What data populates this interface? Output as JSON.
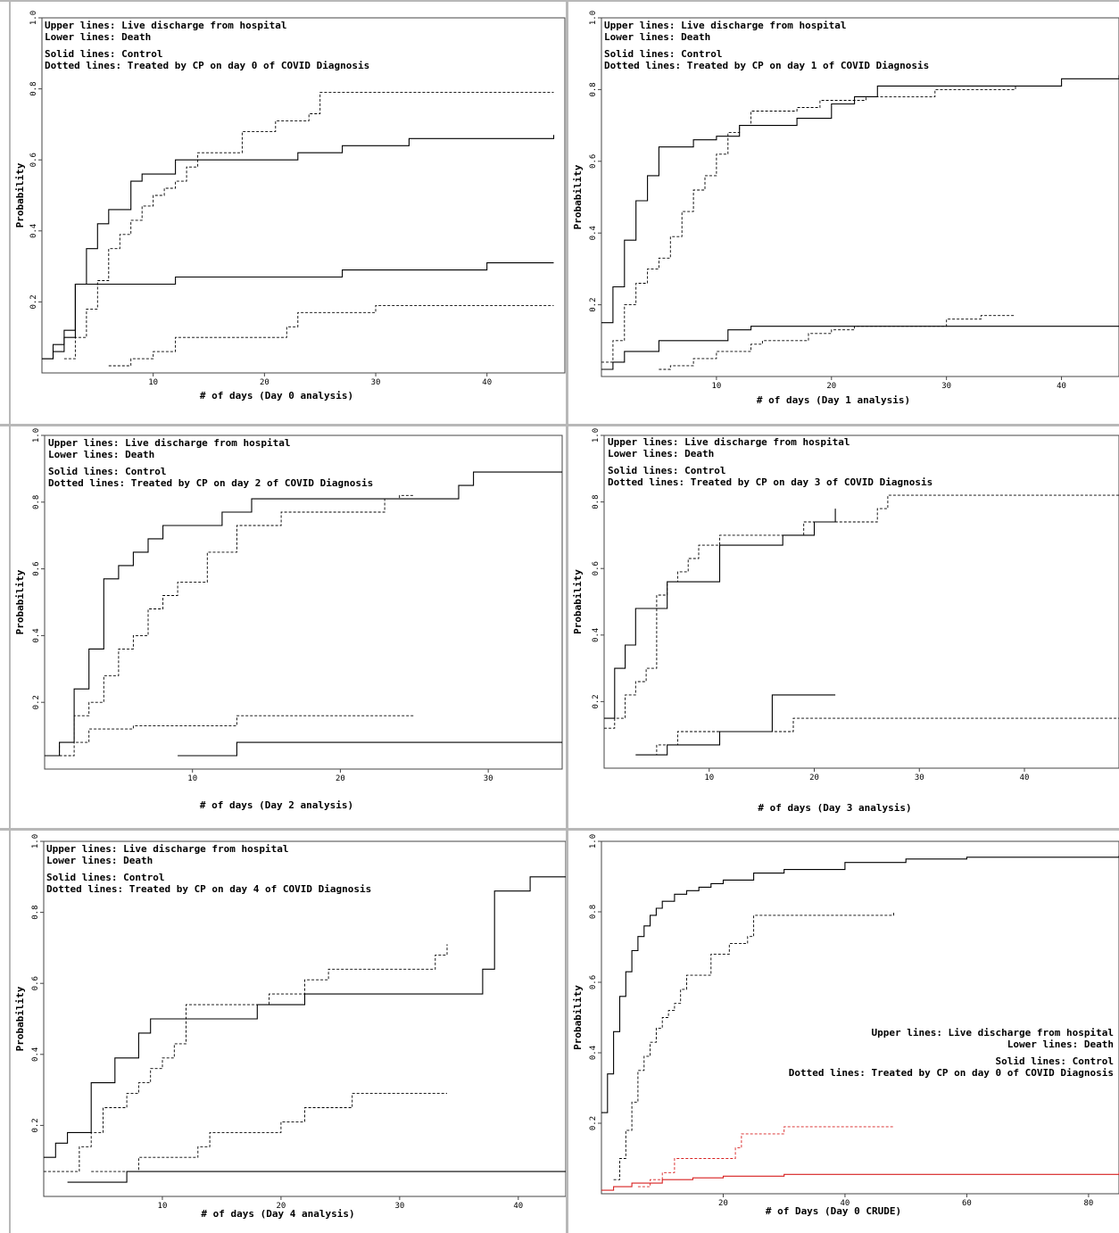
{
  "colors": {
    "line": "#000000",
    "frame": "#444444",
    "divider": "#b8b8b8",
    "red": "#d82020"
  },
  "chart_data": [
    {
      "type": "line",
      "xlabel": "# of days (Day 0 analysis)",
      "ylabel": "Probability",
      "xlim": [
        0,
        47
      ],
      "ylim": [
        0,
        1.0
      ],
      "xticks": [
        10,
        20,
        30,
        40
      ],
      "yticks": [
        0.2,
        0.4,
        0.6,
        0.8,
        1.0
      ],
      "legend_lines": [
        "Upper lines: Live discharge from hospital",
        "Lower lines: Death",
        "Solid lines: Control",
        "Dotted lines: Treated by CP on day 0 of COVID Diagnosis"
      ],
      "series": [
        {
          "style": "solid",
          "x": [
            0,
            1,
            2,
            3,
            4,
            5,
            6,
            8,
            9,
            12,
            23,
            27,
            33,
            46
          ],
          "y": [
            0.04,
            0.08,
            0.12,
            0.25,
            0.35,
            0.42,
            0.46,
            0.54,
            0.56,
            0.6,
            0.62,
            0.64,
            0.66,
            0.67
          ]
        },
        {
          "style": "dotted",
          "x": [
            2,
            3,
            4,
            5,
            6,
            7,
            8,
            9,
            10,
            11,
            12,
            13,
            14,
            18,
            21,
            24,
            25,
            26,
            46
          ],
          "y": [
            0.04,
            0.1,
            0.18,
            0.26,
            0.35,
            0.39,
            0.43,
            0.47,
            0.5,
            0.52,
            0.54,
            0.58,
            0.62,
            0.68,
            0.71,
            0.73,
            0.79,
            0.79,
            0.79
          ]
        },
        {
          "style": "solid",
          "x": [
            0,
            1,
            2,
            3,
            12,
            27,
            40,
            46
          ],
          "y": [
            0.04,
            0.06,
            0.1,
            0.25,
            0.27,
            0.29,
            0.31,
            0.31
          ]
        },
        {
          "style": "dotted",
          "x": [
            6,
            8,
            10,
            12,
            18,
            22,
            23,
            30,
            46
          ],
          "y": [
            0.02,
            0.04,
            0.06,
            0.1,
            0.1,
            0.13,
            0.17,
            0.19,
            0.19
          ]
        }
      ]
    },
    {
      "type": "line",
      "xlabel": "# of days (Day 1 analysis)",
      "ylabel": "Probability",
      "xlim": [
        0,
        45
      ],
      "ylim": [
        0,
        1.0
      ],
      "xticks": [
        10,
        20,
        30,
        40
      ],
      "yticks": [
        0.2,
        0.4,
        0.6,
        0.8,
        1.0
      ],
      "legend_lines": [
        "Upper lines: Live discharge from hospital",
        "Lower lines: Death",
        "Solid lines: Control",
        "Dotted lines: Treated by CP on day 1 of COVID Diagnosis"
      ],
      "series": [
        {
          "style": "solid",
          "x": [
            0,
            1,
            2,
            3,
            4,
            5,
            8,
            10,
            11,
            12,
            17,
            20,
            22,
            24,
            34,
            40,
            45
          ],
          "y": [
            0.15,
            0.25,
            0.38,
            0.49,
            0.56,
            0.64,
            0.66,
            0.67,
            0.67,
            0.7,
            0.72,
            0.76,
            0.78,
            0.81,
            0.81,
            0.83,
            0.84
          ]
        },
        {
          "style": "dotted",
          "x": [
            0,
            1,
            2,
            3,
            4,
            5,
            6,
            7,
            8,
            9,
            10,
            11,
            12,
            13,
            17,
            19,
            23,
            29,
            36
          ],
          "y": [
            0.04,
            0.1,
            0.2,
            0.26,
            0.3,
            0.33,
            0.39,
            0.46,
            0.52,
            0.56,
            0.62,
            0.68,
            0.7,
            0.74,
            0.75,
            0.77,
            0.78,
            0.8,
            0.81
          ]
        },
        {
          "style": "solid",
          "x": [
            0,
            1,
            2,
            5,
            11,
            13,
            45
          ],
          "y": [
            0.02,
            0.04,
            0.07,
            0.1,
            0.13,
            0.14,
            0.14
          ]
        },
        {
          "style": "dotted",
          "x": [
            5,
            6,
            8,
            10,
            13,
            14,
            18,
            20,
            22,
            30,
            33,
            36
          ],
          "y": [
            0.02,
            0.03,
            0.05,
            0.07,
            0.09,
            0.1,
            0.12,
            0.13,
            0.14,
            0.16,
            0.17,
            0.17
          ]
        }
      ]
    },
    {
      "type": "line",
      "xlabel": "# of days (Day 2 analysis)",
      "ylabel": "Probability",
      "xlim": [
        0,
        35
      ],
      "ylim": [
        0,
        1.0
      ],
      "xticks": [
        10,
        20,
        30
      ],
      "yticks": [
        0.2,
        0.4,
        0.6,
        0.8,
        1.0
      ],
      "legend_lines": [
        "Upper lines: Live discharge from hospital",
        "Lower lines: Death",
        "Solid lines: Control",
        "Dotted lines: Treated by CP on day 2 of COVID Diagnosis"
      ],
      "series": [
        {
          "style": "solid",
          "x": [
            0,
            1,
            2,
            3,
            4,
            5,
            6,
            7,
            8,
            12,
            14,
            28,
            29,
            35
          ],
          "y": [
            0.04,
            0.08,
            0.24,
            0.36,
            0.57,
            0.61,
            0.65,
            0.69,
            0.73,
            0.77,
            0.81,
            0.85,
            0.89,
            0.89
          ]
        },
        {
          "style": "dotted",
          "x": [
            1,
            2,
            3,
            4,
            5,
            6,
            7,
            8,
            9,
            11,
            13,
            16,
            23,
            24,
            25
          ],
          "y": [
            0.04,
            0.16,
            0.2,
            0.28,
            0.36,
            0.4,
            0.48,
            0.52,
            0.56,
            0.65,
            0.73,
            0.77,
            0.81,
            0.82,
            0.82
          ]
        },
        {
          "style": "solid",
          "x": [
            9,
            13,
            35
          ],
          "y": [
            0.04,
            0.08,
            0.08
          ]
        },
        {
          "style": "dotted",
          "x": [
            0,
            1,
            3,
            6,
            13,
            25
          ],
          "y": [
            0.04,
            0.08,
            0.12,
            0.13,
            0.16,
            0.16
          ]
        }
      ]
    },
    {
      "type": "line",
      "xlabel": "# of days (Day 3 analysis)",
      "ylabel": "Probability",
      "xlim": [
        0,
        49
      ],
      "ylim": [
        0,
        1.0
      ],
      "xticks": [
        10,
        20,
        30,
        40
      ],
      "yticks": [
        0.2,
        0.4,
        0.6,
        0.8,
        1.0
      ],
      "legend_lines": [
        "Upper lines: Live discharge from hospital",
        "Lower lines: Death",
        "Solid lines: Control",
        "Dotted lines: Treated by CP on day 3 of COVID Diagnosis"
      ],
      "series": [
        {
          "style": "solid",
          "x": [
            0,
            1,
            2,
            3,
            6,
            11,
            17,
            20,
            22
          ],
          "y": [
            0.15,
            0.3,
            0.37,
            0.48,
            0.56,
            0.67,
            0.7,
            0.74,
            0.78
          ]
        },
        {
          "style": "dotted",
          "x": [
            0,
            1,
            2,
            3,
            4,
            5,
            6,
            7,
            8,
            9,
            11,
            16,
            19,
            22,
            26,
            27,
            49
          ],
          "y": [
            0.12,
            0.15,
            0.22,
            0.26,
            0.3,
            0.52,
            0.56,
            0.59,
            0.63,
            0.67,
            0.7,
            0.7,
            0.74,
            0.74,
            0.78,
            0.82,
            0.82
          ]
        },
        {
          "style": "solid",
          "x": [
            3,
            6,
            11,
            16,
            22
          ],
          "y": [
            0.04,
            0.07,
            0.11,
            0.22,
            0.22
          ]
        },
        {
          "style": "dotted",
          "x": [
            4,
            5,
            7,
            18,
            49
          ],
          "y": [
            0.04,
            0.07,
            0.11,
            0.15,
            0.15
          ]
        }
      ]
    },
    {
      "type": "line",
      "xlabel": "# of days (Day 4 analysis)",
      "ylabel": "Probability",
      "xlim": [
        0,
        44
      ],
      "ylim": [
        0,
        1.0
      ],
      "xticks": [
        10,
        20,
        30,
        40
      ],
      "yticks": [
        0.2,
        0.4,
        0.6,
        0.8,
        1.0
      ],
      "legend_lines": [
        "Upper lines: Live discharge from hospital",
        "Lower lines: Death",
        "Solid lines: Control",
        "Dotted lines: Treated by CP on day 4 of COVID Diagnosis"
      ],
      "series": [
        {
          "style": "solid",
          "x": [
            0,
            1,
            2,
            4,
            6,
            8,
            9,
            18,
            22,
            37,
            38,
            41,
            44
          ],
          "y": [
            0.11,
            0.15,
            0.18,
            0.32,
            0.39,
            0.46,
            0.5,
            0.54,
            0.57,
            0.64,
            0.86,
            0.9,
            0.9
          ]
        },
        {
          "style": "dotted",
          "x": [
            0,
            3,
            4,
            5,
            7,
            8,
            9,
            10,
            11,
            12,
            19,
            22,
            24,
            33,
            34
          ],
          "y": [
            0.07,
            0.14,
            0.18,
            0.25,
            0.29,
            0.32,
            0.36,
            0.39,
            0.43,
            0.54,
            0.57,
            0.61,
            0.64,
            0.68,
            0.71
          ]
        },
        {
          "style": "solid",
          "x": [
            2,
            7,
            44
          ],
          "y": [
            0.04,
            0.07,
            0.07
          ]
        },
        {
          "style": "dotted",
          "x": [
            4,
            8,
            13,
            14,
            20,
            22,
            26,
            34
          ],
          "y": [
            0.07,
            0.11,
            0.14,
            0.18,
            0.21,
            0.25,
            0.29,
            0.29
          ]
        }
      ]
    },
    {
      "type": "line",
      "xlabel": "# of Days (Day 0 CRUDE)",
      "ylabel": "Probability",
      "xlim": [
        0,
        85
      ],
      "ylim": [
        0,
        1.0
      ],
      "xticks": [
        20,
        40,
        60,
        80
      ],
      "yticks": [
        0.2,
        0.4,
        0.6,
        0.8,
        1.0
      ],
      "legend_position": "middle-right",
      "legend_lines": [
        "Upper lines: Live discharge from hospital",
        "Lower lines: Death",
        "Solid lines: Control",
        "Dotted lines: Treated by CP on day 0 of COVID Diagnosis"
      ],
      "series": [
        {
          "style": "solid",
          "color": "#000000",
          "x": [
            0,
            1,
            2,
            3,
            4,
            5,
            6,
            7,
            8,
            9,
            10,
            12,
            14,
            16,
            18,
            20,
            25,
            30,
            40,
            50,
            60,
            85
          ],
          "y": [
            0.23,
            0.34,
            0.46,
            0.56,
            0.63,
            0.69,
            0.73,
            0.76,
            0.79,
            0.81,
            0.83,
            0.85,
            0.86,
            0.87,
            0.88,
            0.89,
            0.91,
            0.92,
            0.94,
            0.95,
            0.955,
            0.96
          ]
        },
        {
          "style": "dotted",
          "color": "#000000",
          "x": [
            2,
            3,
            4,
            5,
            6,
            7,
            8,
            9,
            10,
            11,
            12,
            13,
            14,
            18,
            21,
            24,
            25,
            48
          ],
          "y": [
            0.04,
            0.1,
            0.18,
            0.26,
            0.35,
            0.39,
            0.43,
            0.47,
            0.5,
            0.52,
            0.54,
            0.58,
            0.62,
            0.68,
            0.71,
            0.73,
            0.79,
            0.8
          ]
        },
        {
          "style": "solid",
          "color": "#d82020",
          "x": [
            0,
            2,
            5,
            10,
            15,
            20,
            30,
            40,
            60,
            85
          ],
          "y": [
            0.01,
            0.02,
            0.03,
            0.04,
            0.045,
            0.05,
            0.055,
            0.055,
            0.055,
            0.06
          ]
        },
        {
          "style": "dotted",
          "color": "#d82020",
          "x": [
            6,
            8,
            10,
            12,
            18,
            22,
            23,
            30,
            48
          ],
          "y": [
            0.02,
            0.04,
            0.06,
            0.1,
            0.1,
            0.13,
            0.17,
            0.19,
            0.19
          ]
        }
      ]
    }
  ]
}
